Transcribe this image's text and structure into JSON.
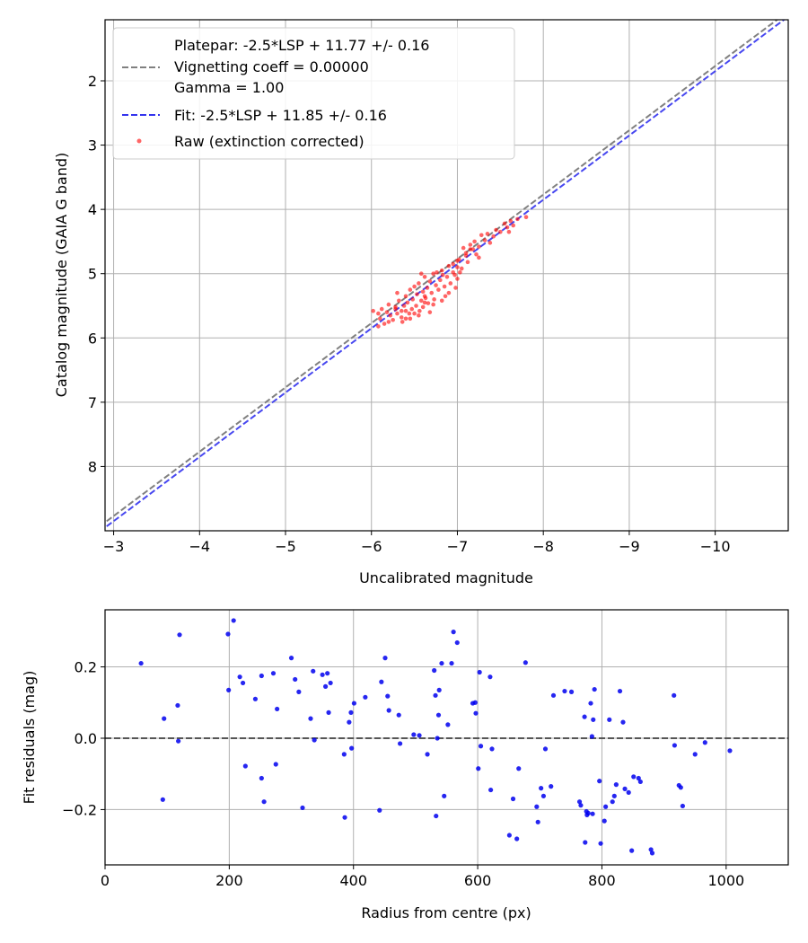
{
  "colors": {
    "platepar": "#808080",
    "fit": "#3333ee",
    "raw": "#ff0000",
    "residuals": "#0000ee",
    "zero_line": "#555555",
    "grid": "#b0b0b0"
  },
  "chart_data": [
    {
      "type": "scatter",
      "xlabel": "Uncalibrated magnitude",
      "ylabel": "Catalog magnitude (GAIA G band)",
      "xlim": [
        -2.9,
        -10.85
      ],
      "ylim": [
        9.0,
        1.05
      ],
      "x_ticks": [
        -3,
        -4,
        -5,
        -6,
        -7,
        -8,
        -9,
        -10
      ],
      "y_ticks": [
        2,
        3,
        4,
        5,
        6,
        7,
        8
      ],
      "x_tick_labels": [
        "−3",
        "−4",
        "−5",
        "−6",
        "−7",
        "−8",
        "−9",
        "−10"
      ],
      "y_tick_labels": [
        "2",
        "3",
        "4",
        "5",
        "6",
        "7",
        "8"
      ],
      "grid": true,
      "legend_position": "top-left",
      "legend": {
        "platepar_line1": "Platepar: -2.5*LSP + 11.77 +/- 0.16",
        "platepar_line2": "Vignetting coeff = 0.00000",
        "platepar_line3": "Gamma = 1.00",
        "fit": "Fit: -2.5*LSP + 11.85 +/- 0.16",
        "raw": "Raw (extinction corrected)"
      },
      "lines": [
        {
          "name": "platepar",
          "intercept": 11.77,
          "slope": 1.0,
          "style": "dashed"
        },
        {
          "name": "fit",
          "intercept": 11.85,
          "slope": 1.0,
          "style": "dashed"
        }
      ],
      "series": [
        {
          "name": "Raw (extinction corrected)",
          "points": [
            [
              -6.02,
              5.58
            ],
            [
              -6.08,
              5.62
            ],
            [
              -6.1,
              5.7
            ],
            [
              -6.12,
              5.55
            ],
            [
              -6.15,
              5.78
            ],
            [
              -6.18,
              5.6
            ],
            [
              -6.2,
              5.48
            ],
            [
              -6.22,
              5.65
            ],
            [
              -6.25,
              5.72
            ],
            [
              -6.28,
              5.52
            ],
            [
              -6.3,
              5.62
            ],
            [
              -6.32,
              5.42
            ],
            [
              -6.35,
              5.68
            ],
            [
              -6.36,
              5.75
            ],
            [
              -6.38,
              5.5
            ],
            [
              -6.4,
              5.58
            ],
            [
              -6.4,
              5.35
            ],
            [
              -6.42,
              5.45
            ],
            [
              -6.44,
              5.62
            ],
            [
              -6.45,
              5.25
            ],
            [
              -6.47,
              5.55
            ],
            [
              -6.48,
              5.4
            ],
            [
              -6.5,
              5.2
            ],
            [
              -6.5,
              5.62
            ],
            [
              -6.52,
              5.5
            ],
            [
              -6.53,
              5.32
            ],
            [
              -6.55,
              5.15
            ],
            [
              -6.56,
              5.58
            ],
            [
              -6.58,
              5.42
            ],
            [
              -6.6,
              5.28
            ],
            [
              -6.6,
              5.52
            ],
            [
              -6.62,
              5.05
            ],
            [
              -6.63,
              5.38
            ],
            [
              -6.65,
              5.22
            ],
            [
              -6.66,
              5.46
            ],
            [
              -6.68,
              5.12
            ],
            [
              -6.7,
              5.3
            ],
            [
              -6.72,
              5.0
            ],
            [
              -6.73,
              5.4
            ],
            [
              -6.75,
              5.18
            ],
            [
              -6.76,
              4.98
            ],
            [
              -6.78,
              5.25
            ],
            [
              -6.8,
              5.1
            ],
            [
              -6.82,
              4.95
            ],
            [
              -6.85,
              5.2
            ],
            [
              -6.86,
              5.35
            ],
            [
              -6.88,
              5.05
            ],
            [
              -6.9,
              4.88
            ],
            [
              -6.92,
              5.15
            ],
            [
              -6.95,
              4.85
            ],
            [
              -6.97,
              5.02
            ],
            [
              -6.98,
              5.22
            ],
            [
              -7.0,
              4.9
            ],
            [
              -7.02,
              4.78
            ],
            [
              -7.03,
              4.98
            ],
            [
              -7.05,
              4.92
            ],
            [
              -7.07,
              4.6
            ],
            [
              -7.1,
              4.68
            ],
            [
              -7.12,
              4.82
            ],
            [
              -7.15,
              4.55
            ],
            [
              -7.18,
              4.62
            ],
            [
              -7.2,
              4.5
            ],
            [
              -7.22,
              4.7
            ],
            [
              -7.25,
              4.58
            ],
            [
              -7.28,
              4.4
            ],
            [
              -7.32,
              4.48
            ],
            [
              -7.35,
              4.38
            ],
            [
              -7.38,
              4.52
            ],
            [
              -7.42,
              4.42
            ],
            [
              -7.45,
              4.32
            ],
            [
              -7.5,
              4.35
            ],
            [
              -7.55,
              4.22
            ],
            [
              -7.58,
              4.28
            ],
            [
              -7.6,
              4.35
            ],
            [
              -7.62,
              4.18
            ],
            [
              -7.65,
              4.25
            ],
            [
              -7.7,
              4.15
            ],
            [
              -7.8,
              4.12
            ],
            [
              -6.08,
              5.82
            ],
            [
              -6.2,
              5.75
            ],
            [
              -6.3,
              5.3
            ],
            [
              -6.45,
              5.7
            ],
            [
              -6.55,
              5.65
            ],
            [
              -6.68,
              5.6
            ],
            [
              -6.72,
              5.48
            ],
            [
              -6.9,
              5.3
            ],
            [
              -7.0,
              5.08
            ],
            [
              -7.1,
              4.72
            ],
            [
              -7.25,
              4.75
            ],
            [
              -6.28,
              5.55
            ],
            [
              -6.62,
              5.45
            ],
            [
              -6.83,
              5.02
            ],
            [
              -6.95,
              4.98
            ],
            [
              -7.15,
              4.62
            ],
            [
              -6.4,
              5.7
            ],
            [
              -6.58,
              5.0
            ],
            [
              -6.82,
              5.42
            ],
            [
              -7.0,
              4.8
            ],
            [
              -6.35,
              5.58
            ],
            [
              -6.62,
              5.35
            ]
          ]
        }
      ]
    },
    {
      "type": "scatter",
      "xlabel": "Radius from centre (px)",
      "ylabel": "Fit residuals (mag)",
      "xlim": [
        0,
        1100
      ],
      "ylim": [
        -0.355,
        0.36
      ],
      "x_ticks": [
        0,
        200,
        400,
        600,
        800,
        1000
      ],
      "y_ticks": [
        -0.2,
        0.0,
        0.2
      ],
      "x_tick_labels": [
        "0",
        "200",
        "400",
        "600",
        "800",
        "1000"
      ],
      "y_tick_labels": [
        "−0.2",
        "0.0",
        "0.2"
      ],
      "grid": true,
      "zero_line": 0.0,
      "series": [
        {
          "name": "residuals",
          "points": [
            [
              58,
              0.21
            ],
            [
              93,
              -0.172
            ],
            [
              95,
              0.055
            ],
            [
              117,
              0.092
            ],
            [
              118,
              -0.008
            ],
            [
              120,
              0.29
            ],
            [
              198,
              0.292
            ],
            [
              199,
              0.135
            ],
            [
              207,
              0.33
            ],
            [
              217,
              0.172
            ],
            [
              222,
              0.155
            ],
            [
              226,
              -0.078
            ],
            [
              242,
              0.11
            ],
            [
              252,
              0.175
            ],
            [
              252,
              -0.112
            ],
            [
              256,
              -0.178
            ],
            [
              271,
              0.182
            ],
            [
              275,
              -0.073
            ],
            [
              277,
              0.082
            ],
            [
              300,
              0.225
            ],
            [
              306,
              0.165
            ],
            [
              312,
              0.13
            ],
            [
              318,
              -0.195
            ],
            [
              331,
              0.055
            ],
            [
              335,
              0.188
            ],
            [
              337,
              -0.005
            ],
            [
              350,
              0.178
            ],
            [
              355,
              0.145
            ],
            [
              358,
              0.182
            ],
            [
              360,
              0.072
            ],
            [
              363,
              0.155
            ],
            [
              385,
              -0.045
            ],
            [
              386,
              -0.222
            ],
            [
              393,
              0.045
            ],
            [
              396,
              0.072
            ],
            [
              397,
              -0.028
            ],
            [
              401,
              0.098
            ],
            [
              419,
              0.115
            ],
            [
              442,
              -0.202
            ],
            [
              445,
              0.158
            ],
            [
              451,
              0.225
            ],
            [
              455,
              0.118
            ],
            [
              457,
              0.078
            ],
            [
              473,
              0.065
            ],
            [
              475,
              -0.015
            ],
            [
              497,
              0.01
            ],
            [
              506,
              0.008
            ],
            [
              519,
              -0.045
            ],
            [
              530,
              0.19
            ],
            [
              532,
              0.12
            ],
            [
              533,
              -0.218
            ],
            [
              535,
              0.0
            ],
            [
              537,
              0.065
            ],
            [
              538,
              0.135
            ],
            [
              542,
              0.21
            ],
            [
              546,
              -0.162
            ],
            [
              552,
              0.038
            ],
            [
              558,
              0.21
            ],
            [
              561,
              0.298
            ],
            [
              567,
              0.268
            ],
            [
              592,
              0.098
            ],
            [
              596,
              0.1
            ],
            [
              597,
              0.07
            ],
            [
              601,
              -0.085
            ],
            [
              603,
              0.185
            ],
            [
              605,
              -0.022
            ],
            [
              621,
              -0.145
            ],
            [
              620,
              0.172
            ],
            [
              623,
              -0.03
            ],
            [
              651,
              -0.272
            ],
            [
              657,
              -0.17
            ],
            [
              663,
              -0.282
            ],
            [
              666,
              -0.085
            ],
            [
              677,
              0.212
            ],
            [
              695,
              -0.192
            ],
            [
              697,
              -0.235
            ],
            [
              702,
              -0.14
            ],
            [
              706,
              -0.162
            ],
            [
              709,
              -0.03
            ],
            [
              718,
              -0.135
            ],
            [
              722,
              0.12
            ],
            [
              740,
              0.132
            ],
            [
              751,
              0.13
            ],
            [
              764,
              -0.178
            ],
            [
              766,
              -0.188
            ],
            [
              772,
              0.06
            ],
            [
              773,
              -0.292
            ],
            [
              775,
              -0.205
            ],
            [
              776,
              -0.215
            ],
            [
              778,
              -0.21
            ],
            [
              782,
              0.098
            ],
            [
              784,
              0.005
            ],
            [
              785,
              -0.212
            ],
            [
              786,
              0.052
            ],
            [
              788,
              0.137
            ],
            [
              796,
              -0.12
            ],
            [
              798,
              -0.295
            ],
            [
              804,
              -0.232
            ],
            [
              806,
              -0.192
            ],
            [
              812,
              0.052
            ],
            [
              817,
              -0.178
            ],
            [
              820,
              -0.162
            ],
            [
              823,
              -0.13
            ],
            [
              829,
              0.132
            ],
            [
              834,
              0.045
            ],
            [
              837,
              -0.142
            ],
            [
              843,
              -0.152
            ],
            [
              848,
              -0.315
            ],
            [
              851,
              -0.108
            ],
            [
              859,
              -0.112
            ],
            [
              862,
              -0.122
            ],
            [
              879,
              -0.312
            ],
            [
              881,
              -0.322
            ],
            [
              916,
              0.12
            ],
            [
              917,
              -0.02
            ],
            [
              924,
              -0.132
            ],
            [
              927,
              -0.138
            ],
            [
              930,
              -0.19
            ],
            [
              950,
              -0.045
            ],
            [
              966,
              -0.012
            ],
            [
              1006,
              -0.035
            ]
          ]
        }
      ]
    }
  ]
}
